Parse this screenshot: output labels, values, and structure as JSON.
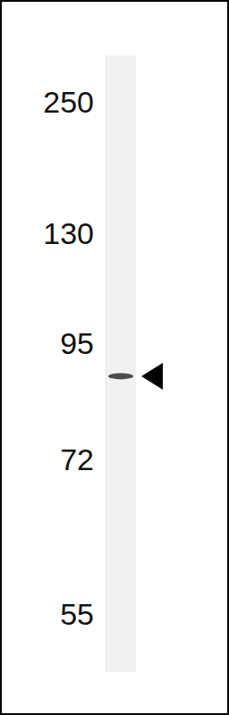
{
  "chart_data": {
    "type": "blot",
    "log": "y",
    "ylim": [
      50,
      316
    ],
    "yticks": [
      55,
      72,
      95,
      130,
      250
    ],
    "categories": [
      null
    ],
    "values": [
      88
    ],
    "color": "#3a3a3a",
    "tick_labels": "y"
  }
}
